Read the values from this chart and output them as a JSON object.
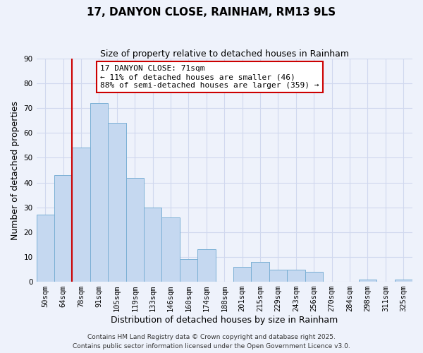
{
  "title": "17, DANYON CLOSE, RAINHAM, RM13 9LS",
  "subtitle": "Size of property relative to detached houses in Rainham",
  "xlabel": "Distribution of detached houses by size in Rainham",
  "ylabel": "Number of detached properties",
  "bar_labels": [
    "50sqm",
    "64sqm",
    "78sqm",
    "91sqm",
    "105sqm",
    "119sqm",
    "133sqm",
    "146sqm",
    "160sqm",
    "174sqm",
    "188sqm",
    "201sqm",
    "215sqm",
    "229sqm",
    "243sqm",
    "256sqm",
    "270sqm",
    "284sqm",
    "298sqm",
    "311sqm",
    "325sqm"
  ],
  "bar_values": [
    27,
    43,
    54,
    72,
    64,
    42,
    30,
    26,
    9,
    13,
    0,
    6,
    8,
    5,
    5,
    4,
    0,
    0,
    1,
    0,
    1
  ],
  "bar_color": "#c5d8f0",
  "bar_edge_color": "#7aafd4",
  "vline_color": "#cc0000",
  "ylim": [
    0,
    90
  ],
  "yticks": [
    0,
    10,
    20,
    30,
    40,
    50,
    60,
    70,
    80,
    90
  ],
  "annotation_text_line1": "17 DANYON CLOSE: 71sqm",
  "annotation_text_line2": "← 11% of detached houses are smaller (46)",
  "annotation_text_line3": "88% of semi-detached houses are larger (359) →",
  "annotation_box_color": "#ffffff",
  "annotation_box_edge_color": "#cc0000",
  "footer_line1": "Contains HM Land Registry data © Crown copyright and database right 2025.",
  "footer_line2": "Contains public sector information licensed under the Open Government Licence v3.0.",
  "bg_color": "#eef2fb",
  "grid_color": "#d0d8ee",
  "title_fontsize": 11,
  "subtitle_fontsize": 9,
  "axis_label_fontsize": 9,
  "tick_fontsize": 7.5,
  "annotation_fontsize": 8,
  "footer_fontsize": 6.5
}
